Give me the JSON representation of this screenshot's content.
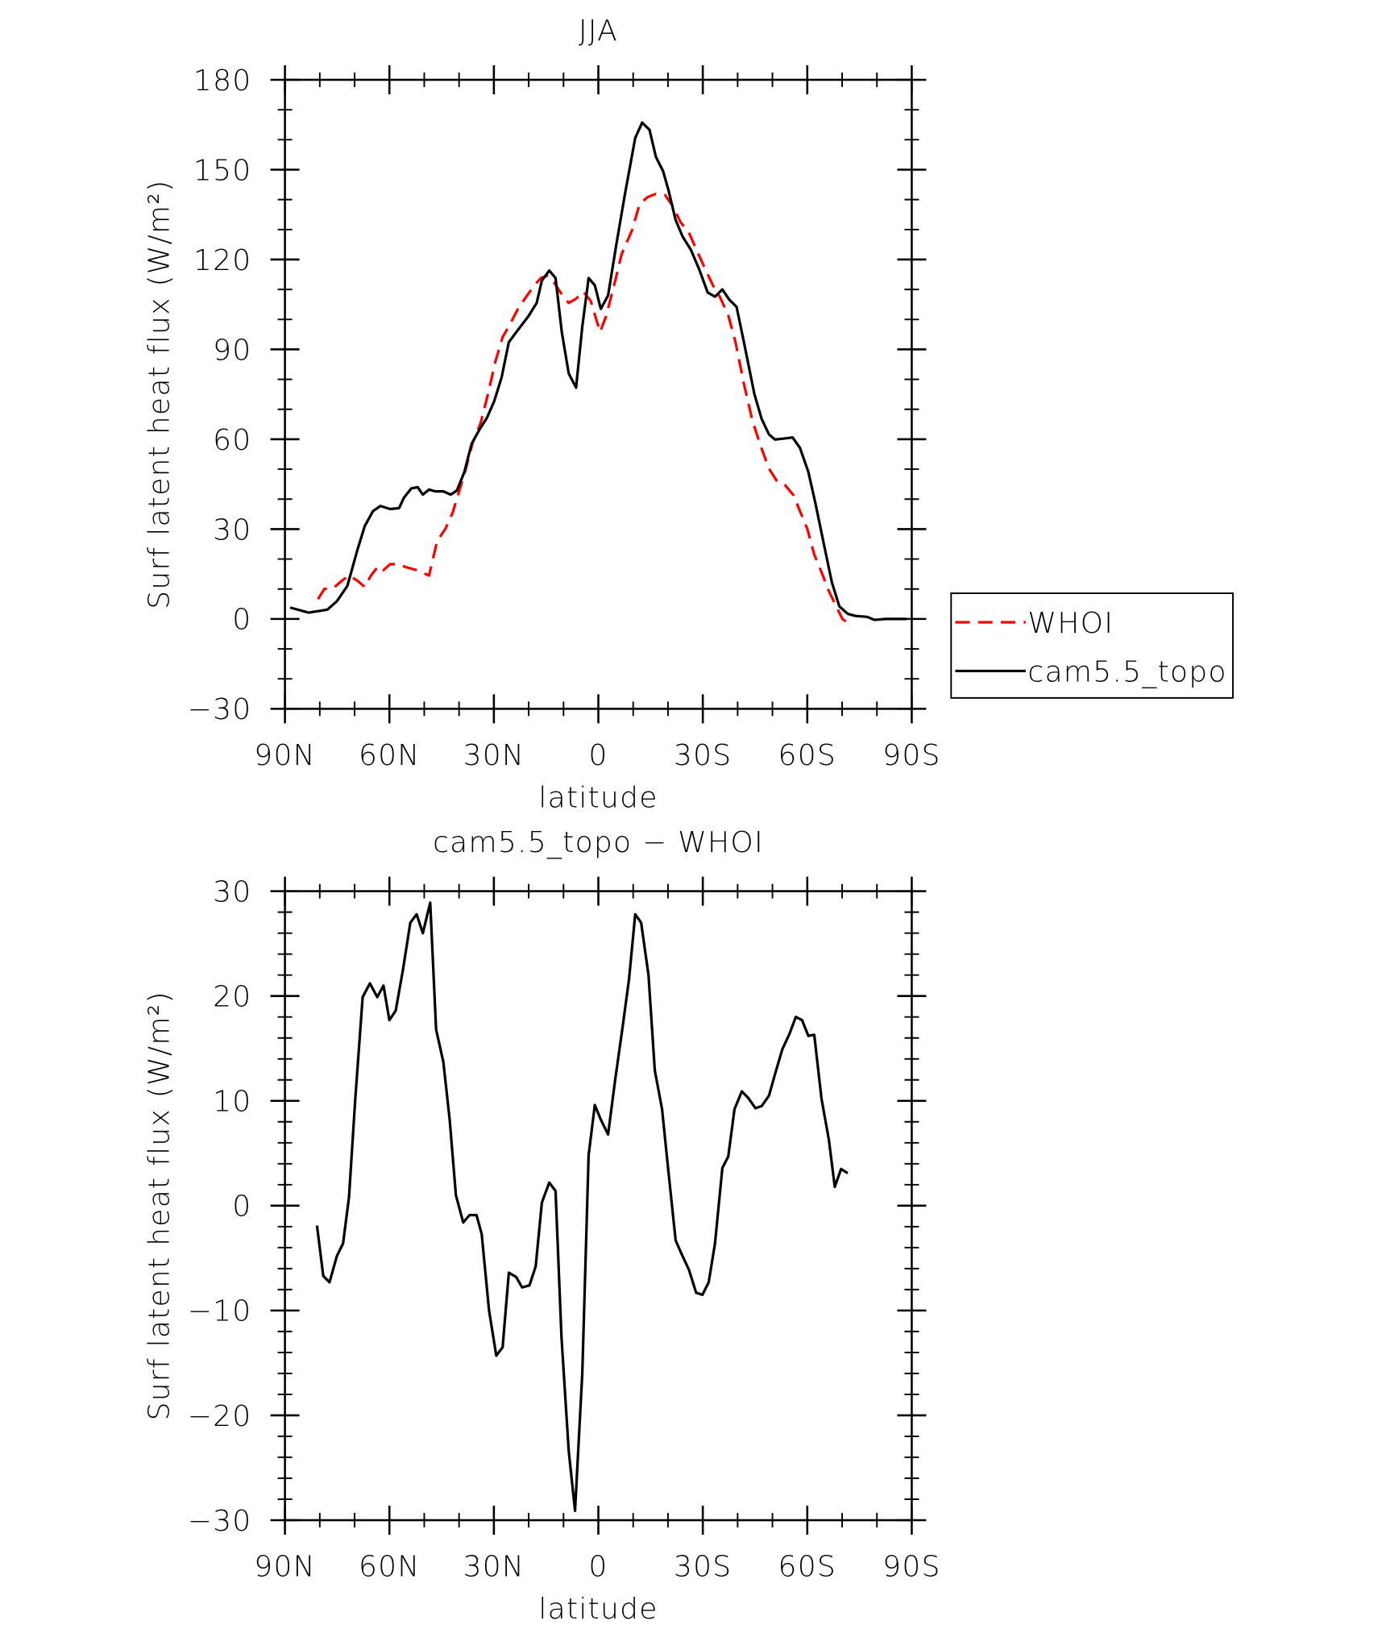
{
  "chart_data": [
    {
      "type": "line",
      "title": "JJA",
      "xlabel": "latitude",
      "ylabel": "Surf latent heat flux (W/m²)",
      "xlim": [
        90,
        -90
      ],
      "ylim": [
        -30,
        180
      ],
      "xticks": [
        {
          "value": 90,
          "label": "90N"
        },
        {
          "value": 60,
          "label": "60N"
        },
        {
          "value": 30,
          "label": "30N"
        },
        0,
        {
          "value": -30,
          "label": "30S"
        },
        {
          "value": -60,
          "label": "60S"
        },
        {
          "value": -90,
          "label": "90S"
        }
      ],
      "yticks": [
        {
          "value": -30,
          "label": "−30"
        },
        0,
        30,
        60,
        90,
        120,
        150,
        180
      ],
      "legend": "right",
      "series": [
        {
          "name": "WHOI",
          "color": "#ff0000",
          "linestyle": "dashed",
          "x": [
            80.5,
            78.7,
            76.0,
            73.6,
            71.6,
            69.2,
            67.1,
            65.3,
            63.2,
            61.7,
            59.8,
            57.9,
            55.2,
            52.2,
            48.6,
            46.3,
            43.9,
            41.8,
            40.0,
            38.2,
            36.1,
            33.8,
            31.7,
            29.6,
            27.5,
            25.4,
            23.1,
            20.7,
            18.6,
            16.5,
            14.7,
            12.6,
            10.5,
            8.5,
            6.4,
            4.3,
            2.2,
            -0.5,
            -2.2,
            -4.3,
            -6.7,
            -9.7,
            -11.8,
            -14.1,
            -16.5,
            -19.2,
            -21.6,
            -23.6,
            -26.0,
            -28.1,
            -30.5,
            -32.9,
            -35.0,
            -37.3,
            -39.4,
            -41.8,
            -44.2,
            -46.6,
            -49.0,
            -51.3,
            -53.7,
            -56.1,
            -57.9,
            -60.0,
            -62.0,
            -64.1,
            -66.2,
            -68.3,
            -70.1,
            -72.2
          ],
          "values": [
            6.6,
            10,
            10.4,
            12.8,
            14.5,
            12.8,
            10.7,
            14.5,
            17.6,
            16.3,
            18.3,
            18.3,
            17.3,
            16.3,
            14.5,
            26,
            30.1,
            35.6,
            42.6,
            49.5,
            58.8,
            65.4,
            75.1,
            85.8,
            94.1,
            98.3,
            103.5,
            107.6,
            111,
            113.8,
            114.5,
            112.1,
            108.3,
            105.5,
            106.9,
            109.3,
            106.2,
            95.8,
            101,
            110.4,
            121.8,
            129.8,
            138.4,
            140.8,
            141.9,
            141.5,
            137.4,
            132.5,
            129,
            123.5,
            117.3,
            111.4,
            107.3,
            101.4,
            92.4,
            78.5,
            66.4,
            57.8,
            50.2,
            46,
            44.6,
            41.2,
            36,
            30.1,
            21.5,
            15.6,
            9.3,
            4.2,
            0,
            -1.7
          ]
        },
        {
          "name": "cam5.5_topo",
          "color": "#000000",
          "linestyle": "solid",
          "x": [
            88.5,
            83.2,
            77.8,
            75.1,
            72.1,
            69.2,
            67.1,
            64.7,
            62.6,
            59.8,
            57.2,
            55.8,
            53.7,
            51.9,
            50.4,
            48.6,
            46.9,
            44.5,
            42.4,
            40.6,
            38.5,
            36.4,
            34.1,
            32.0,
            29.9,
            27.8,
            25.7,
            23.1,
            20.1,
            17.7,
            16.2,
            14.1,
            12.3,
            10.5,
            8.5,
            6.4,
            4.6,
            2.8,
            1.0,
            -0.7,
            -2.8,
            -5.2,
            -7.6,
            -10.6,
            -12.6,
            -14.7,
            -16.5,
            -18.6,
            -20.1,
            -22.2,
            -24.2,
            -26.6,
            -29.0,
            -31.4,
            -33.5,
            -35.6,
            -37.6,
            -39.7,
            -41.8,
            -44.8,
            -46.9,
            -49.0,
            -50.7,
            -53.1,
            -55.8,
            -57.9,
            -60.3,
            -62.3,
            -64.7,
            -67.1,
            -69.2,
            -71.6,
            -73.9,
            -77.2,
            -79.3,
            -82.6,
            -88.5
          ],
          "values": [
            3.8,
            2.1,
            3.1,
            5.9,
            11,
            23,
            31,
            36,
            37.7,
            36.7,
            37,
            40.5,
            43.6,
            44,
            41.5,
            43.2,
            42.6,
            42.6,
            41.5,
            42.9,
            49,
            58.5,
            63.3,
            67.1,
            72.7,
            80.6,
            92.4,
            96.5,
            101,
            105.5,
            113,
            116.3,
            113.8,
            95.8,
            82,
            77.2,
            97.6,
            113.8,
            111.4,
            103.5,
            108,
            125.3,
            141.5,
            160.6,
            165.7,
            163.3,
            154.3,
            149.5,
            143.3,
            133.2,
            127.7,
            123.2,
            116.6,
            109,
            107.6,
            110,
            106.6,
            104.2,
            92.4,
            75.1,
            66.8,
            61.6,
            59.9,
            60.2,
            60.6,
            57.1,
            49.1,
            38.8,
            25.3,
            12.1,
            4.2,
            1.7,
            1.0,
            0.7,
            -0.3,
            0,
            0
          ]
        }
      ]
    },
    {
      "type": "line",
      "title": "cam5.5_topo − WHOI",
      "xlabel": "latitude",
      "ylabel": "Surf latent heat flux (W/m²)",
      "xlim": [
        90,
        -90
      ],
      "ylim": [
        -30,
        30
      ],
      "xticks": [
        {
          "value": 90,
          "label": "90N"
        },
        {
          "value": 60,
          "label": "60N"
        },
        {
          "value": 30,
          "label": "30N"
        },
        0,
        {
          "value": -30,
          "label": "30S"
        },
        {
          "value": -60,
          "label": "60S"
        },
        {
          "value": -90,
          "label": "90S"
        }
      ],
      "yticks": [
        {
          "value": -30,
          "label": "−30"
        },
        {
          "value": -20,
          "label": "−20"
        },
        {
          "value": -10,
          "label": "−10"
        },
        0,
        10,
        20,
        30
      ],
      "series": [
        {
          "color": "#000000",
          "linestyle": "solid",
          "x": [
            80.8,
            79.0,
            77.2,
            75.1,
            73.3,
            71.6,
            69.8,
            67.7,
            65.6,
            63.5,
            61.7,
            60.0,
            58.2,
            56.1,
            54.0,
            52.2,
            50.4,
            48.3,
            46.6,
            44.5,
            42.7,
            40.9,
            38.8,
            37.0,
            35.0,
            33.5,
            31.4,
            29.3,
            27.5,
            25.7,
            23.6,
            21.9,
            19.8,
            18.0,
            16.2,
            14.1,
            12.3,
            10.6,
            8.5,
            6.7,
            4.6,
            2.8,
            1.0,
            -0.7,
            -2.8,
            -4.9,
            -7.0,
            -8.8,
            -10.6,
            -12.3,
            -14.4,
            -16.2,
            -18.3,
            -20.1,
            -22.2,
            -23.9,
            -26.0,
            -28.1,
            -29.9,
            -31.7,
            -33.5,
            -35.6,
            -37.3,
            -39.1,
            -41.2,
            -43.0,
            -45.1,
            -46.9,
            -49.0,
            -50.7,
            -52.8,
            -54.9,
            -56.7,
            -58.5,
            -60.3,
            -62.0,
            -64.1,
            -66.2,
            -67.9,
            -69.7,
            -71.6
          ],
          "values": [
            -1.9,
            -6.7,
            -7.3,
            -4.8,
            -3.6,
            0.8,
            10.2,
            19.9,
            21.2,
            19.9,
            21,
            17.7,
            18.6,
            22.5,
            27,
            27.8,
            26,
            28.9,
            16.8,
            13.7,
            8.2,
            1.0,
            -1.6,
            -0.9,
            -0.9,
            -2.7,
            -10,
            -14.3,
            -13.5,
            -6.4,
            -6.8,
            -7.8,
            -7.6,
            -5.8,
            0.3,
            2.2,
            1.4,
            -12.5,
            -23.4,
            -29.1,
            -16,
            4.8,
            9.6,
            8.2,
            6.8,
            12.2,
            17.1,
            21.6,
            27.8,
            27,
            22,
            12.9,
            9.2,
            3.3,
            -3.3,
            -4.6,
            -6.1,
            -8.3,
            -8.5,
            -7.3,
            -3.6,
            3.6,
            4.7,
            9.2,
            10.9,
            10.3,
            9.3,
            9.5,
            10.5,
            12.5,
            14.9,
            16.4,
            18,
            17.7,
            16.2,
            16.3,
            10.2,
            6.3,
            1.8,
            3.5,
            3.1
          ]
        }
      ]
    }
  ]
}
